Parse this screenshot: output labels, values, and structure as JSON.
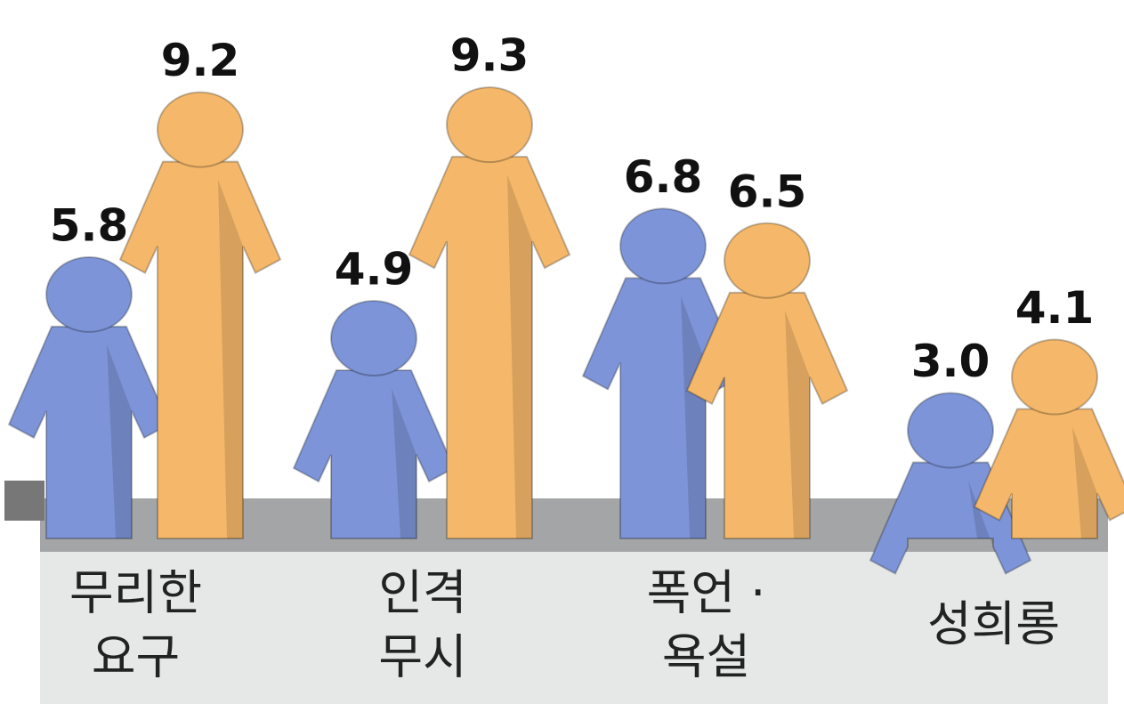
{
  "chart_data": {
    "type": "pictogram",
    "categories": [
      [
        "무리한",
        "요구"
      ],
      [
        "인격",
        "무시"
      ],
      [
        "폭언 ·",
        "욕설"
      ],
      [
        "성희롱"
      ]
    ],
    "series": [
      {
        "color": "#7d95d8",
        "values": [
          5.8,
          4.9,
          6.8,
          3.0
        ],
        "value_labels": [
          "5.8",
          "4.9",
          "6.8",
          "3.0"
        ]
      },
      {
        "color": "#f5b86a",
        "values": [
          9.2,
          9.3,
          6.5,
          4.1
        ]
      }
    ],
    "ylim": [
      0,
      10
    ]
  }
}
